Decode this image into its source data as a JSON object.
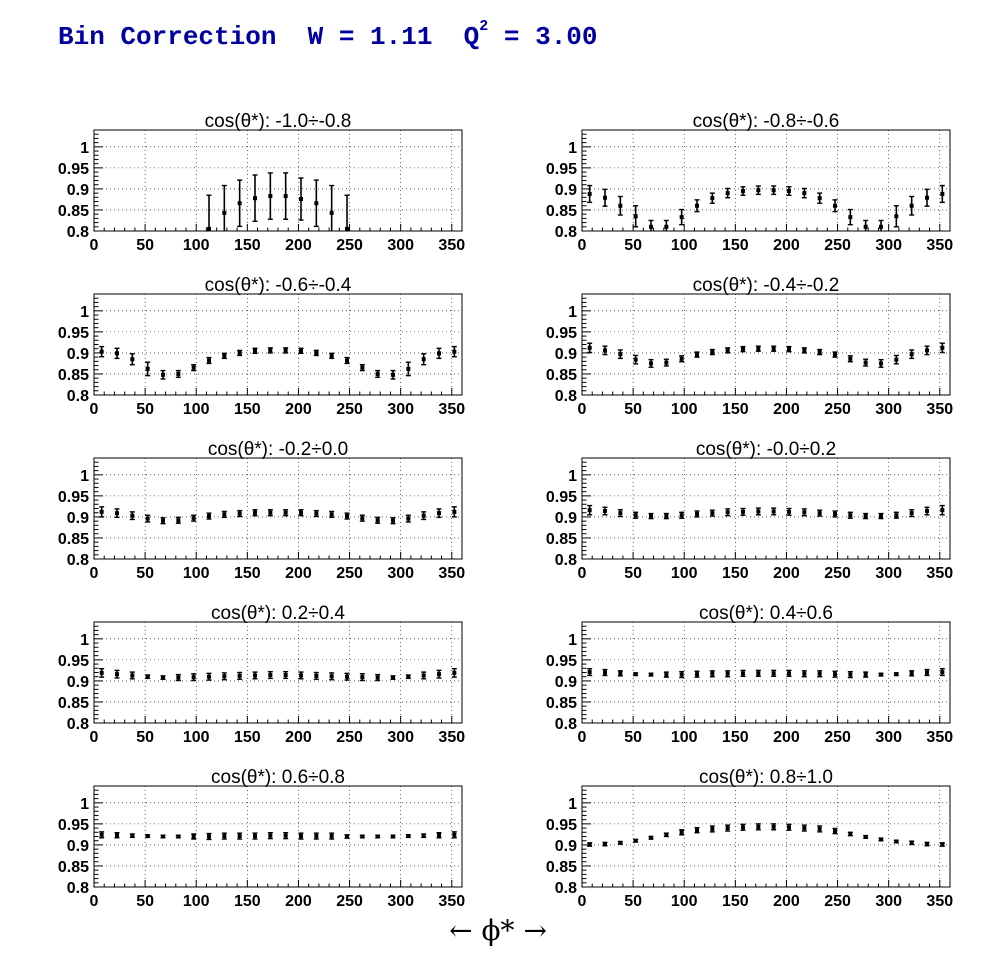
{
  "page": {
    "title_prefix": "Bin Correction  W = 1.11  Q",
    "title_sup": "2",
    "title_suffix": " = 3.00",
    "x_axis_label": "←   ϕ*   →"
  },
  "style": {
    "title_color": "#0000a0",
    "marker_color": "#000000",
    "grid": "dotted"
  },
  "chart_data": [
    {
      "type": "scatter",
      "title": "cos(θ*): -1.0÷-0.8",
      "xlim": [
        0,
        360
      ],
      "ylim": [
        0.8,
        1.04
      ],
      "grid": true,
      "x_ticks": [
        0,
        50,
        100,
        150,
        200,
        250,
        300,
        350
      ],
      "y_ticks": [
        0.8,
        0.85,
        0.9,
        0.95,
        1
      ],
      "x": [
        112.5,
        127.5,
        142.5,
        157.5,
        172.5,
        187.5,
        202.5,
        217.5,
        232.5,
        247.5
      ],
      "y": [
        0.805,
        0.843,
        0.866,
        0.878,
        0.883,
        0.883,
        0.876,
        0.866,
        0.843,
        0.805
      ],
      "yerr": [
        0.08,
        0.065,
        0.055,
        0.055,
        0.055,
        0.055,
        0.05,
        0.055,
        0.065,
        0.08
      ]
    },
    {
      "type": "scatter",
      "title": "cos(θ*): -0.8÷-0.6",
      "xlim": [
        0,
        360
      ],
      "ylim": [
        0.8,
        1.04
      ],
      "grid": true,
      "x_ticks": [
        0,
        50,
        100,
        150,
        200,
        250,
        300,
        350
      ],
      "y_ticks": [
        0.8,
        0.85,
        0.9,
        0.95,
        1
      ],
      "x": [
        7.5,
        22.5,
        37.5,
        52.5,
        67.5,
        82.5,
        97.5,
        112.5,
        127.5,
        142.5,
        157.5,
        172.5,
        187.5,
        202.5,
        217.5,
        232.5,
        247.5,
        262.5,
        277.5,
        292.5,
        307.5,
        322.5,
        337.5,
        352.5
      ],
      "y": [
        0.888,
        0.879,
        0.86,
        0.835,
        0.81,
        0.81,
        0.833,
        0.86,
        0.878,
        0.89,
        0.895,
        0.897,
        0.897,
        0.895,
        0.89,
        0.878,
        0.86,
        0.833,
        0.81,
        0.81,
        0.835,
        0.86,
        0.879,
        0.888
      ],
      "yerr": [
        0.02,
        0.02,
        0.022,
        0.025,
        0.015,
        0.015,
        0.018,
        0.014,
        0.012,
        0.011,
        0.01,
        0.01,
        0.01,
        0.01,
        0.011,
        0.012,
        0.014,
        0.018,
        0.015,
        0.015,
        0.025,
        0.022,
        0.02,
        0.02
      ]
    },
    {
      "type": "scatter",
      "title": "cos(θ*): -0.6÷-0.4",
      "xlim": [
        0,
        360
      ],
      "ylim": [
        0.8,
        1.04
      ],
      "grid": true,
      "x_ticks": [
        0,
        50,
        100,
        150,
        200,
        250,
        300,
        350
      ],
      "y_ticks": [
        0.8,
        0.85,
        0.9,
        0.95,
        1
      ],
      "x": [
        7.5,
        22.5,
        37.5,
        52.5,
        67.5,
        82.5,
        97.5,
        112.5,
        127.5,
        142.5,
        157.5,
        172.5,
        187.5,
        202.5,
        217.5,
        232.5,
        247.5,
        262.5,
        277.5,
        292.5,
        307.5,
        322.5,
        337.5,
        352.5
      ],
      "y": [
        0.903,
        0.899,
        0.885,
        0.862,
        0.848,
        0.85,
        0.865,
        0.882,
        0.893,
        0.9,
        0.905,
        0.906,
        0.906,
        0.905,
        0.9,
        0.893,
        0.882,
        0.865,
        0.85,
        0.848,
        0.862,
        0.885,
        0.899,
        0.903
      ],
      "yerr": [
        0.012,
        0.012,
        0.013,
        0.016,
        0.01,
        0.008,
        0.007,
        0.007,
        0.006,
        0.006,
        0.006,
        0.006,
        0.006,
        0.006,
        0.006,
        0.006,
        0.007,
        0.007,
        0.008,
        0.01,
        0.016,
        0.013,
        0.012,
        0.012
      ]
    },
    {
      "type": "scatter",
      "title": "cos(θ*): -0.4÷-0.2",
      "xlim": [
        0,
        360
      ],
      "ylim": [
        0.8,
        1.04
      ],
      "grid": true,
      "x_ticks": [
        0,
        50,
        100,
        150,
        200,
        250,
        300,
        350
      ],
      "y_ticks": [
        0.8,
        0.85,
        0.9,
        0.95,
        1
      ],
      "x": [
        7.5,
        22.5,
        37.5,
        52.5,
        67.5,
        82.5,
        97.5,
        112.5,
        127.5,
        142.5,
        157.5,
        172.5,
        187.5,
        202.5,
        217.5,
        232.5,
        247.5,
        262.5,
        277.5,
        292.5,
        307.5,
        322.5,
        337.5,
        352.5
      ],
      "y": [
        0.912,
        0.906,
        0.897,
        0.884,
        0.875,
        0.877,
        0.886,
        0.896,
        0.902,
        0.906,
        0.909,
        0.91,
        0.91,
        0.909,
        0.906,
        0.902,
        0.896,
        0.886,
        0.877,
        0.875,
        0.884,
        0.897,
        0.906,
        0.912
      ],
      "yerr": [
        0.011,
        0.01,
        0.01,
        0.01,
        0.009,
        0.008,
        0.007,
        0.006,
        0.006,
        0.006,
        0.006,
        0.006,
        0.006,
        0.006,
        0.006,
        0.006,
        0.006,
        0.007,
        0.008,
        0.009,
        0.01,
        0.01,
        0.01,
        0.011
      ]
    },
    {
      "type": "scatter",
      "title": "cos(θ*): -0.2÷0.0",
      "xlim": [
        0,
        360
      ],
      "ylim": [
        0.8,
        1.04
      ],
      "grid": true,
      "x_ticks": [
        0,
        50,
        100,
        150,
        200,
        250,
        300,
        350
      ],
      "y_ticks": [
        0.8,
        0.85,
        0.9,
        0.95,
        1
      ],
      "x": [
        7.5,
        22.5,
        37.5,
        52.5,
        67.5,
        82.5,
        97.5,
        112.5,
        127.5,
        142.5,
        157.5,
        172.5,
        187.5,
        202.5,
        217.5,
        232.5,
        247.5,
        262.5,
        277.5,
        292.5,
        307.5,
        322.5,
        337.5,
        352.5
      ],
      "y": [
        0.912,
        0.909,
        0.903,
        0.896,
        0.891,
        0.892,
        0.897,
        0.902,
        0.906,
        0.908,
        0.91,
        0.91,
        0.91,
        0.91,
        0.908,
        0.906,
        0.902,
        0.897,
        0.892,
        0.891,
        0.896,
        0.903,
        0.909,
        0.912
      ],
      "yerr": [
        0.012,
        0.01,
        0.009,
        0.008,
        0.007,
        0.007,
        0.007,
        0.007,
        0.007,
        0.007,
        0.007,
        0.007,
        0.007,
        0.007,
        0.007,
        0.007,
        0.007,
        0.007,
        0.007,
        0.007,
        0.008,
        0.009,
        0.01,
        0.012
      ]
    },
    {
      "type": "scatter",
      "title": "cos(θ*): -0.0÷0.2",
      "xlim": [
        0,
        360
      ],
      "ylim": [
        0.8,
        1.04
      ],
      "grid": true,
      "x_ticks": [
        0,
        50,
        100,
        150,
        200,
        250,
        300,
        350
      ],
      "y_ticks": [
        0.8,
        0.85,
        0.9,
        0.95,
        1
      ],
      "x": [
        7.5,
        22.5,
        37.5,
        52.5,
        67.5,
        82.5,
        97.5,
        112.5,
        127.5,
        142.5,
        157.5,
        172.5,
        187.5,
        202.5,
        217.5,
        232.5,
        247.5,
        262.5,
        277.5,
        292.5,
        307.5,
        322.5,
        337.5,
        352.5
      ],
      "y": [
        0.916,
        0.914,
        0.909,
        0.904,
        0.902,
        0.902,
        0.904,
        0.907,
        0.909,
        0.911,
        0.912,
        0.913,
        0.913,
        0.912,
        0.911,
        0.909,
        0.907,
        0.904,
        0.902,
        0.902,
        0.904,
        0.909,
        0.914,
        0.916
      ],
      "yerr": [
        0.011,
        0.009,
        0.008,
        0.007,
        0.006,
        0.006,
        0.007,
        0.007,
        0.007,
        0.008,
        0.008,
        0.008,
        0.008,
        0.008,
        0.008,
        0.007,
        0.007,
        0.007,
        0.006,
        0.006,
        0.007,
        0.008,
        0.009,
        0.011
      ]
    },
    {
      "type": "scatter",
      "title": "cos(θ*): 0.2÷0.4",
      "xlim": [
        0,
        360
      ],
      "ylim": [
        0.8,
        1.04
      ],
      "grid": true,
      "x_ticks": [
        0,
        50,
        100,
        150,
        200,
        250,
        300,
        350
      ],
      "y_ticks": [
        0.8,
        0.85,
        0.9,
        0.95,
        1
      ],
      "x": [
        7.5,
        22.5,
        37.5,
        52.5,
        67.5,
        82.5,
        97.5,
        112.5,
        127.5,
        142.5,
        157.5,
        172.5,
        187.5,
        202.5,
        217.5,
        232.5,
        247.5,
        262.5,
        277.5,
        292.5,
        307.5,
        322.5,
        337.5,
        352.5
      ],
      "y": [
        0.919,
        0.916,
        0.913,
        0.91,
        0.908,
        0.908,
        0.909,
        0.91,
        0.911,
        0.912,
        0.913,
        0.914,
        0.914,
        0.913,
        0.912,
        0.911,
        0.91,
        0.909,
        0.908,
        0.908,
        0.91,
        0.913,
        0.916,
        0.919
      ],
      "yerr": [
        0.01,
        0.009,
        0.008,
        0.004,
        0.004,
        0.007,
        0.008,
        0.008,
        0.008,
        0.008,
        0.008,
        0.008,
        0.008,
        0.008,
        0.008,
        0.008,
        0.008,
        0.008,
        0.007,
        0.004,
        0.004,
        0.008,
        0.009,
        0.01
      ]
    },
    {
      "type": "scatter",
      "title": "cos(θ*): 0.4÷0.6",
      "xlim": [
        0,
        360
      ],
      "ylim": [
        0.8,
        1.04
      ],
      "grid": true,
      "x_ticks": [
        0,
        50,
        100,
        150,
        200,
        250,
        300,
        350
      ],
      "y_ticks": [
        0.8,
        0.85,
        0.9,
        0.95,
        1
      ],
      "x": [
        7.5,
        22.5,
        37.5,
        52.5,
        67.5,
        82.5,
        97.5,
        112.5,
        127.5,
        142.5,
        157.5,
        172.5,
        187.5,
        202.5,
        217.5,
        232.5,
        247.5,
        262.5,
        277.5,
        292.5,
        307.5,
        322.5,
        337.5,
        352.5
      ],
      "y": [
        0.921,
        0.92,
        0.918,
        0.916,
        0.915,
        0.915,
        0.915,
        0.916,
        0.917,
        0.917,
        0.918,
        0.918,
        0.918,
        0.918,
        0.917,
        0.917,
        0.916,
        0.915,
        0.915,
        0.915,
        0.916,
        0.918,
        0.92,
        0.921
      ],
      "yerr": [
        0.008,
        0.007,
        0.006,
        0.003,
        0.003,
        0.006,
        0.007,
        0.007,
        0.007,
        0.007,
        0.007,
        0.007,
        0.007,
        0.007,
        0.007,
        0.007,
        0.007,
        0.007,
        0.006,
        0.003,
        0.003,
        0.006,
        0.007,
        0.008
      ]
    },
    {
      "type": "scatter",
      "title": "cos(θ*): 0.6÷0.8",
      "xlim": [
        0,
        360
      ],
      "ylim": [
        0.8,
        1.04
      ],
      "grid": true,
      "x_ticks": [
        0,
        50,
        100,
        150,
        200,
        250,
        300,
        350
      ],
      "y_ticks": [
        0.8,
        0.85,
        0.9,
        0.95,
        1
      ],
      "x": [
        7.5,
        22.5,
        37.5,
        52.5,
        67.5,
        82.5,
        97.5,
        112.5,
        127.5,
        142.5,
        157.5,
        172.5,
        187.5,
        202.5,
        217.5,
        232.5,
        247.5,
        262.5,
        277.5,
        292.5,
        307.5,
        322.5,
        337.5,
        352.5
      ],
      "y": [
        0.924,
        0.923,
        0.922,
        0.921,
        0.92,
        0.92,
        0.92,
        0.92,
        0.921,
        0.921,
        0.921,
        0.922,
        0.922,
        0.921,
        0.921,
        0.921,
        0.92,
        0.92,
        0.92,
        0.92,
        0.921,
        0.922,
        0.923,
        0.924
      ],
      "yerr": [
        0.007,
        0.006,
        0.004,
        0.003,
        0.003,
        0.003,
        0.006,
        0.007,
        0.007,
        0.007,
        0.007,
        0.007,
        0.007,
        0.007,
        0.007,
        0.007,
        0.004,
        0.003,
        0.003,
        0.003,
        0.003,
        0.004,
        0.006,
        0.007
      ]
    },
    {
      "type": "scatter",
      "title": "cos(θ*): 0.8÷1.0",
      "xlim": [
        0,
        360
      ],
      "ylim": [
        0.8,
        1.04
      ],
      "grid": true,
      "x_ticks": [
        0,
        50,
        100,
        150,
        200,
        250,
        300,
        350
      ],
      "y_ticks": [
        0.8,
        0.85,
        0.9,
        0.95,
        1
      ],
      "x": [
        7.5,
        22.5,
        37.5,
        52.5,
        67.5,
        82.5,
        97.5,
        112.5,
        127.5,
        142.5,
        157.5,
        172.5,
        187.5,
        202.5,
        217.5,
        232.5,
        247.5,
        262.5,
        277.5,
        292.5,
        307.5,
        322.5,
        337.5,
        352.5
      ],
      "y": [
        0.901,
        0.902,
        0.905,
        0.91,
        0.917,
        0.924,
        0.93,
        0.935,
        0.938,
        0.94,
        0.942,
        0.943,
        0.943,
        0.942,
        0.94,
        0.938,
        0.933,
        0.926,
        0.919,
        0.913,
        0.908,
        0.905,
        0.902,
        0.901
      ],
      "yerr": [
        0.004,
        0.004,
        0.003,
        0.003,
        0.003,
        0.004,
        0.006,
        0.006,
        0.007,
        0.007,
        0.007,
        0.007,
        0.007,
        0.007,
        0.007,
        0.007,
        0.006,
        0.004,
        0.003,
        0.003,
        0.003,
        0.004,
        0.004,
        0.004
      ]
    }
  ]
}
